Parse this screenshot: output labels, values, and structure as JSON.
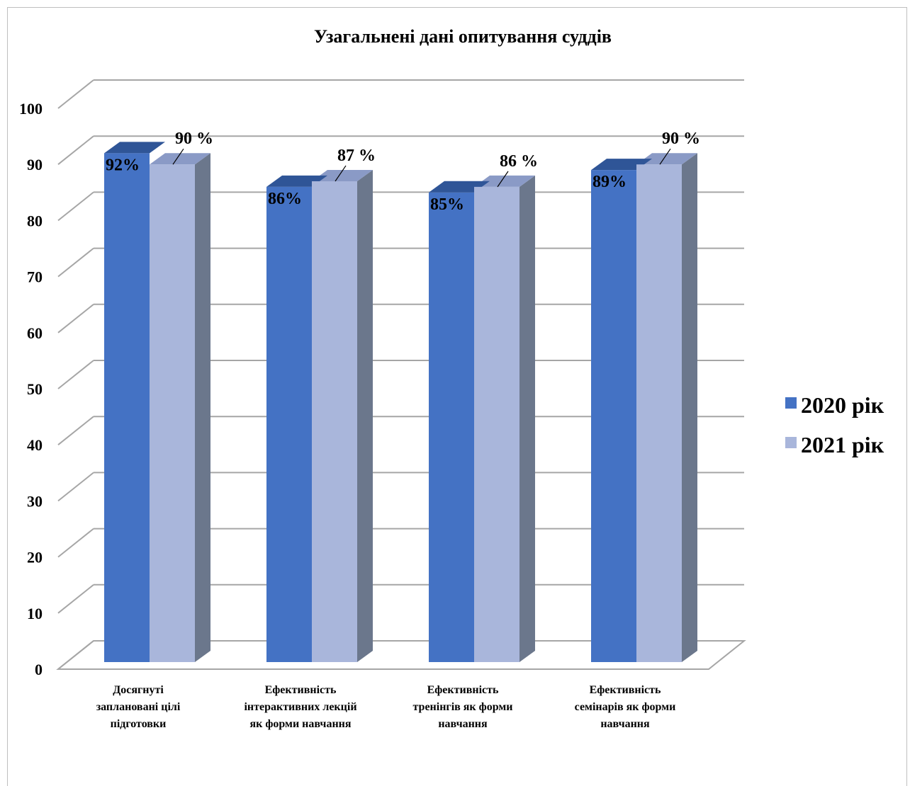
{
  "chart_data": {
    "type": "bar",
    "title": "Узагальнені дані опитування суддів",
    "categories": [
      [
        "Досягнуті",
        "заплановані цілі",
        "підготовки"
      ],
      [
        "Ефективність",
        "інтерактивних лекцій",
        "як форми навчання"
      ],
      [
        "Ефективність",
        "тренінгів як форми",
        "навчання"
      ],
      [
        "Ефективність",
        "семінарів як форми",
        "навчання"
      ]
    ],
    "series": [
      {
        "name": "2020 рік",
        "values": [
          92,
          86,
          85,
          89
        ],
        "labels": [
          "92%",
          "86%",
          "85%",
          "89%"
        ],
        "color": "#4472C4",
        "top_color": "#2F5597"
      },
      {
        "name": "2021 рік",
        "values": [
          90,
          87,
          86,
          90
        ],
        "labels": [
          "90 %",
          "87 %",
          "86 %",
          "90 %"
        ],
        "color": "#A9B6DB",
        "top_color": "#8A9AC6",
        "side_color": "#6B778C"
      }
    ],
    "ylim": [
      0,
      100
    ],
    "yticks": [
      0,
      10,
      20,
      30,
      40,
      50,
      60,
      70,
      80,
      90,
      100
    ],
    "ytick_labels": [
      "0",
      "10",
      "20",
      "30",
      "40",
      "50",
      "60",
      "70",
      "80",
      "90",
      "100"
    ],
    "grid": true,
    "legend_position": "right",
    "style": "3d-clustered-column"
  }
}
